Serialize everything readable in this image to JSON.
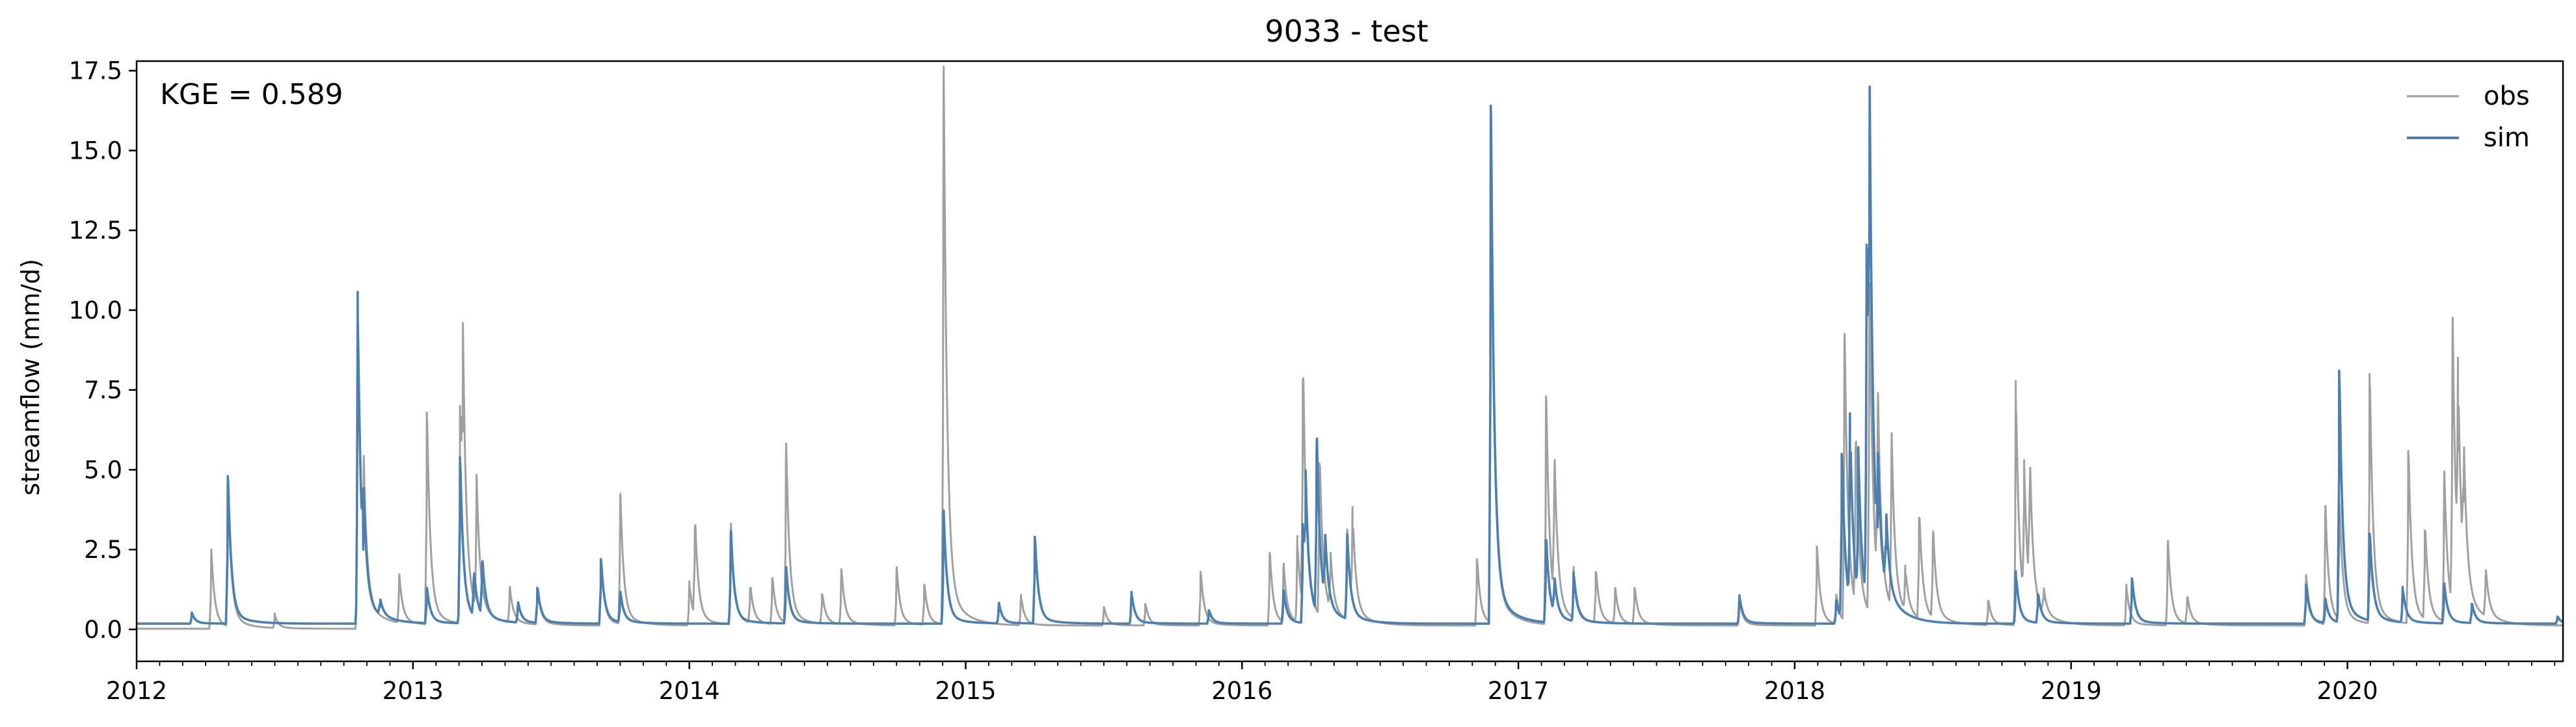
{
  "chart_data": {
    "type": "line",
    "title": "9033 - test",
    "xlabel": "",
    "ylabel": "streamflow (mm/d)",
    "annotation": "KGE = 0.589",
    "xlim": [
      2012.0,
      2020.78
    ],
    "ylim": [
      -1.0,
      17.8
    ],
    "x_ticks": [
      {
        "value": 2012,
        "label": "2012"
      },
      {
        "value": 2013,
        "label": "2013"
      },
      {
        "value": 2014,
        "label": "2014"
      },
      {
        "value": 2015,
        "label": "2015"
      },
      {
        "value": 2016,
        "label": "2016"
      },
      {
        "value": 2017,
        "label": "2017"
      },
      {
        "value": 2018,
        "label": "2018"
      },
      {
        "value": 2019,
        "label": "2019"
      },
      {
        "value": 2020,
        "label": "2020"
      }
    ],
    "y_ticks": [
      {
        "value": 0.0,
        "label": "0.0"
      },
      {
        "value": 2.5,
        "label": "2.5"
      },
      {
        "value": 5.0,
        "label": "5.0"
      },
      {
        "value": 7.5,
        "label": "7.5"
      },
      {
        "value": 10.0,
        "label": "10.0"
      },
      {
        "value": 12.5,
        "label": "12.5"
      },
      {
        "value": 15.0,
        "label": "15.0"
      },
      {
        "value": 17.5,
        "label": "17.5"
      }
    ],
    "grid": false,
    "legend_position": "top-right",
    "baseline": {
      "obs": 0.12,
      "sim": 0.18
    },
    "series": [
      {
        "name": "obs",
        "color": "#a0a0a0",
        "peaks": [
          [
            2012.27,
            2.5
          ],
          [
            2012.33,
            4.6
          ],
          [
            2012.5,
            0.5
          ],
          [
            2012.8,
            9.7
          ],
          [
            2012.82,
            3.6
          ],
          [
            2012.95,
            1.6
          ],
          [
            2013.05,
            6.8
          ],
          [
            2013.17,
            7.0
          ],
          [
            2013.18,
            6.2
          ],
          [
            2013.23,
            4.0
          ],
          [
            2013.35,
            1.2
          ],
          [
            2013.45,
            1.3
          ],
          [
            2013.68,
            2.2
          ],
          [
            2013.75,
            4.1
          ],
          [
            2014.0,
            1.4
          ],
          [
            2014.02,
            3.2
          ],
          [
            2014.15,
            3.2
          ],
          [
            2014.22,
            1.3
          ],
          [
            2014.3,
            1.6
          ],
          [
            2014.35,
            5.6
          ],
          [
            2014.48,
            1.1
          ],
          [
            2014.55,
            1.8
          ],
          [
            2014.75,
            1.9
          ],
          [
            2014.85,
            1.4
          ],
          [
            2014.92,
            17.0
          ],
          [
            2015.2,
            1.0
          ],
          [
            2015.5,
            0.7
          ],
          [
            2015.65,
            0.8
          ],
          [
            2015.85,
            1.8
          ],
          [
            2016.1,
            2.4
          ],
          [
            2016.15,
            1.9
          ],
          [
            2016.2,
            2.6
          ],
          [
            2016.22,
            7.8
          ],
          [
            2016.28,
            5.2
          ],
          [
            2016.32,
            1.8
          ],
          [
            2016.38,
            2.9
          ],
          [
            2016.4,
            2.8
          ],
          [
            2016.85,
            2.2
          ],
          [
            2016.9,
            15.3
          ],
          [
            2017.1,
            7.3
          ],
          [
            2017.13,
            4.6
          ],
          [
            2017.2,
            1.6
          ],
          [
            2017.28,
            1.8
          ],
          [
            2017.35,
            1.2
          ],
          [
            2017.42,
            1.3
          ],
          [
            2017.8,
            0.9
          ],
          [
            2018.08,
            2.6
          ],
          [
            2018.15,
            1.0
          ],
          [
            2018.18,
            9.0
          ],
          [
            2018.22,
            5.6
          ],
          [
            2018.27,
            10.6
          ],
          [
            2018.3,
            6.1
          ],
          [
            2018.35,
            5.4
          ],
          [
            2018.4,
            1.4
          ],
          [
            2018.45,
            3.5
          ],
          [
            2018.5,
            2.9
          ],
          [
            2018.7,
            0.9
          ],
          [
            2018.8,
            7.2
          ],
          [
            2018.83,
            4.1
          ],
          [
            2018.85,
            4.2
          ],
          [
            2018.9,
            0.9
          ],
          [
            2019.2,
            1.3
          ],
          [
            2019.35,
            2.7
          ],
          [
            2019.42,
            1.0
          ],
          [
            2019.85,
            1.7
          ],
          [
            2019.92,
            3.7
          ],
          [
            2019.97,
            4.0
          ],
          [
            2020.08,
            8.0
          ],
          [
            2020.22,
            5.6
          ],
          [
            2020.28,
            3.1
          ],
          [
            2020.35,
            4.7
          ],
          [
            2020.38,
            9.0
          ],
          [
            2020.4,
            5.6
          ],
          [
            2020.42,
            4.0
          ],
          [
            2020.5,
            1.6
          ]
        ]
      },
      {
        "name": "sim",
        "color": "#4a7fb0",
        "peaks": [
          [
            2012.2,
            0.5
          ],
          [
            2012.33,
            4.8
          ],
          [
            2012.8,
            9.8
          ],
          [
            2012.82,
            2.5
          ],
          [
            2012.88,
            0.7
          ],
          [
            2013.05,
            1.3
          ],
          [
            2013.17,
            5.4
          ],
          [
            2013.22,
            1.6
          ],
          [
            2013.25,
            2.0
          ],
          [
            2013.38,
            0.8
          ],
          [
            2013.45,
            1.3
          ],
          [
            2013.68,
            2.2
          ],
          [
            2013.75,
            1.1
          ],
          [
            2014.15,
            3.0
          ],
          [
            2014.35,
            1.9
          ],
          [
            2014.92,
            3.6
          ],
          [
            2015.12,
            0.8
          ],
          [
            2015.25,
            2.9
          ],
          [
            2015.6,
            1.1
          ],
          [
            2015.88,
            0.6
          ],
          [
            2016.15,
            1.2
          ],
          [
            2016.22,
            3.3
          ],
          [
            2016.23,
            3.2
          ],
          [
            2016.27,
            5.7
          ],
          [
            2016.3,
            2.2
          ],
          [
            2016.38,
            2.8
          ],
          [
            2016.9,
            16.4
          ],
          [
            2017.1,
            2.8
          ],
          [
            2017.13,
            1.3
          ],
          [
            2017.2,
            1.6
          ],
          [
            2017.8,
            1.0
          ],
          [
            2018.15,
            0.9
          ],
          [
            2018.17,
            5.5
          ],
          [
            2018.2,
            5.6
          ],
          [
            2018.23,
            4.5
          ],
          [
            2018.26,
            10.6
          ],
          [
            2018.27,
            11.9
          ],
          [
            2018.3,
            3.2
          ],
          [
            2018.33,
            2.5
          ],
          [
            2018.8,
            1.7
          ],
          [
            2018.88,
            1.1
          ],
          [
            2019.22,
            1.6
          ],
          [
            2019.85,
            1.4
          ],
          [
            2019.92,
            0.9
          ],
          [
            2019.97,
            8.1
          ],
          [
            2020.08,
            3.0
          ],
          [
            2020.2,
            1.2
          ],
          [
            2020.35,
            1.4
          ],
          [
            2020.45,
            0.8
          ],
          [
            2020.76,
            0.4
          ]
        ]
      }
    ]
  }
}
